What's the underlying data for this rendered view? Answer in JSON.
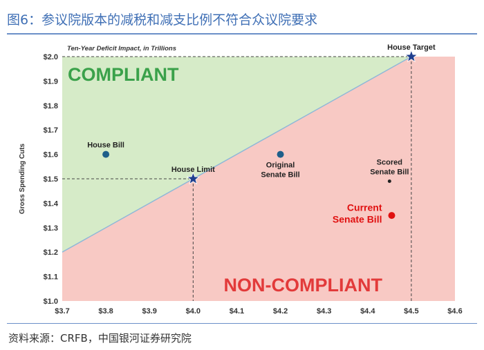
{
  "figure": {
    "title": "图6：参议院版本的减税和减支比例不符合众议院要求",
    "source": "资料来源：CRFB，中国银河证券研究院"
  },
  "chart_data": {
    "type": "scatter",
    "subtitle": "Ten-Year Deficit Impact, in Trillions",
    "xlabel": "",
    "ylabel": "Gross Spending Cuts",
    "xlim": [
      3.7,
      4.6
    ],
    "ylim": [
      1.0,
      2.0
    ],
    "x_ticks": [
      "$3.7",
      "$3.8",
      "$3.9",
      "$4.0",
      "$4.1",
      "$4.2",
      "$4.3",
      "$4.4",
      "$4.5",
      "$4.6"
    ],
    "x_tick_values": [
      3.7,
      3.8,
      3.9,
      4.0,
      4.1,
      4.2,
      4.3,
      4.4,
      4.5,
      4.6
    ],
    "y_ticks": [
      "$1.0",
      "$1.1",
      "$1.2",
      "$1.3",
      "$1.4",
      "$1.5",
      "$1.6",
      "$1.7",
      "$1.8",
      "$1.9",
      "$2.0"
    ],
    "y_tick_values": [
      1.0,
      1.1,
      1.2,
      1.3,
      1.4,
      1.5,
      1.6,
      1.7,
      1.8,
      1.9,
      2.0
    ],
    "compliance_line": [
      [
        3.7,
        1.2
      ],
      [
        4.5,
        2.0
      ]
    ],
    "region_labels": {
      "compliant": "COMPLIANT",
      "non_compliant": "NON-COMPLIANT"
    },
    "points": [
      {
        "label": [
          "House Target"
        ],
        "x": 4.5,
        "y": 2.0,
        "marker": "star",
        "color": "#1f3f8f",
        "label_pos": "above"
      },
      {
        "label": [
          "House Limit"
        ],
        "x": 4.0,
        "y": 1.5,
        "marker": "star",
        "color": "#1f3f8f",
        "label_pos": "above"
      },
      {
        "label": [
          "House Bill"
        ],
        "x": 3.8,
        "y": 1.6,
        "marker": "dot",
        "color": "#1f5f8a",
        "label_pos": "above"
      },
      {
        "label": [
          "Original",
          "Senate Bill"
        ],
        "x": 4.2,
        "y": 1.6,
        "marker": "dot",
        "color": "#1f5f8a",
        "label_pos": "below"
      },
      {
        "label": [
          "Scored",
          "Senate Bill"
        ],
        "x": 4.45,
        "y": 1.49,
        "marker": "small-dot",
        "color": "#222222",
        "label_pos": "above"
      },
      {
        "label": [
          "Current",
          "Senate Bill"
        ],
        "x": 4.455,
        "y": 1.35,
        "marker": "dot",
        "color": "#e01010",
        "label_pos": "left"
      }
    ],
    "colors": {
      "compliant_fill": "#d6ebc8",
      "non_compliant_fill": "#f8c9c4",
      "compliant_text": "#3aa14a",
      "non_compliant_text": "#e23a3a",
      "line": "#8fb8d8"
    }
  }
}
